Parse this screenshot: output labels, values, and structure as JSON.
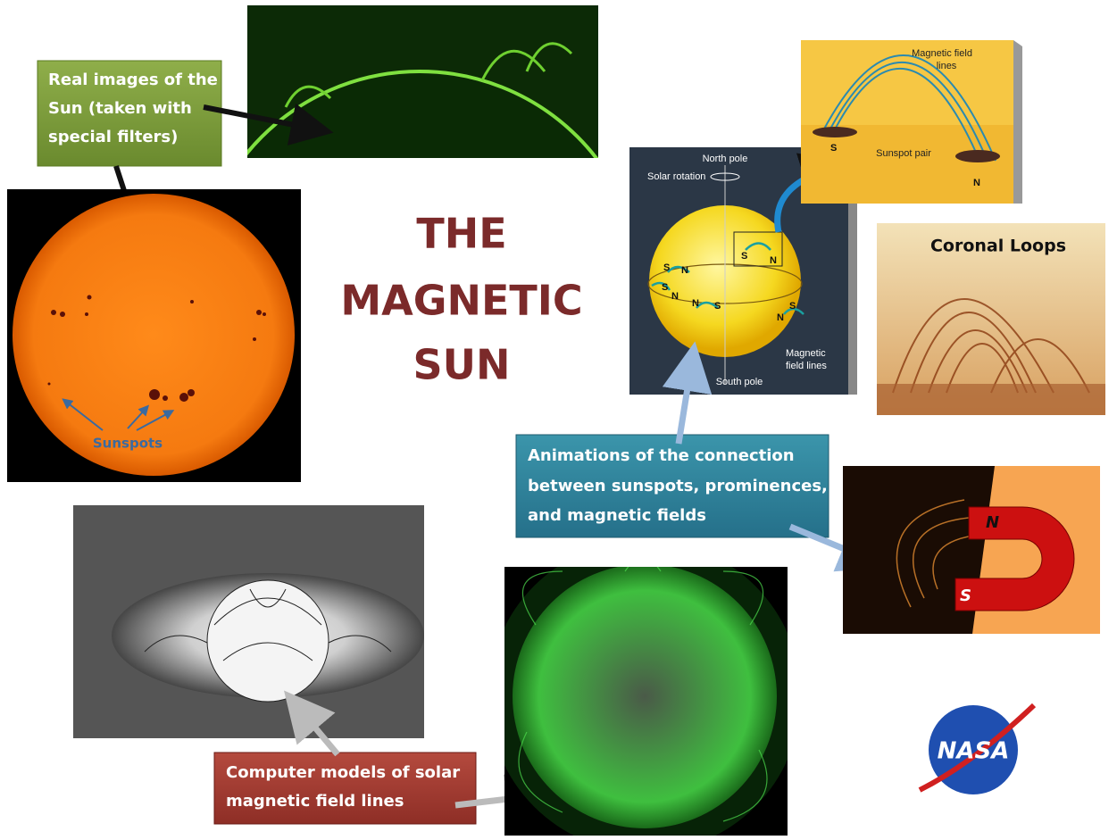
{
  "title": {
    "lines": [
      "THE",
      "MAGNETIC",
      "SUN"
    ]
  },
  "callouts": {
    "real_images": [
      "Real images of the",
      "Sun (taken with",
      "special filters)"
    ],
    "animations": [
      "Animations of the connection",
      "between sunspots, prominences,",
      "and magnetic fields"
    ],
    "computer_models": [
      "Computer models of solar",
      "magnetic field lines"
    ]
  },
  "sunspots_label": "Sunspots",
  "coronal_loops_label": "Coronal Loops",
  "diagram": {
    "north_pole": "North pole",
    "solar_rotation": "Solar rotation",
    "south_pole": "South pole",
    "field_lines": [
      "Magnetic",
      "field lines"
    ],
    "pairs": [
      [
        "S",
        "N"
      ],
      [
        "S",
        "N"
      ],
      [
        "N",
        "S"
      ],
      [
        "N",
        "S"
      ],
      [
        "S",
        "N"
      ]
    ],
    "inset": {
      "field_lines": [
        "Magnetic field",
        "lines"
      ],
      "sunspot_pair": "Sunspot pair",
      "s": "S",
      "n": "N"
    }
  },
  "magnet": {
    "n": "N",
    "s": "S"
  },
  "logo": "NASA"
}
